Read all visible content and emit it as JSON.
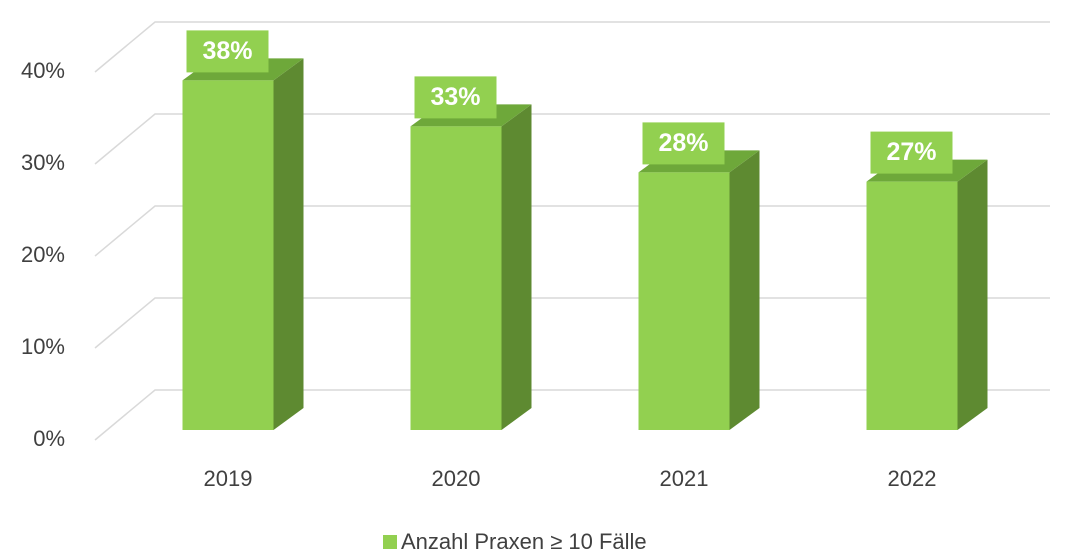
{
  "chart_data": {
    "type": "bar3d",
    "categories": [
      "2019",
      "2020",
      "2021",
      "2022"
    ],
    "series": [
      {
        "name": "Anzahl Praxen ≥ 10 Fälle",
        "color": "#92d050",
        "values": [
          38,
          33,
          28,
          27
        ],
        "value_labels": [
          "38%",
          "33%",
          "28%",
          "27%"
        ]
      }
    ],
    "ylim": [
      0,
      40
    ],
    "yticks": [
      {
        "value": 0,
        "label": "0%"
      },
      {
        "value": 10,
        "label": "10%"
      },
      {
        "value": 20,
        "label": "20%"
      },
      {
        "value": 30,
        "label": "30%"
      },
      {
        "value": 40,
        "label": "40%"
      }
    ],
    "grid": true,
    "legend": "bottom"
  }
}
